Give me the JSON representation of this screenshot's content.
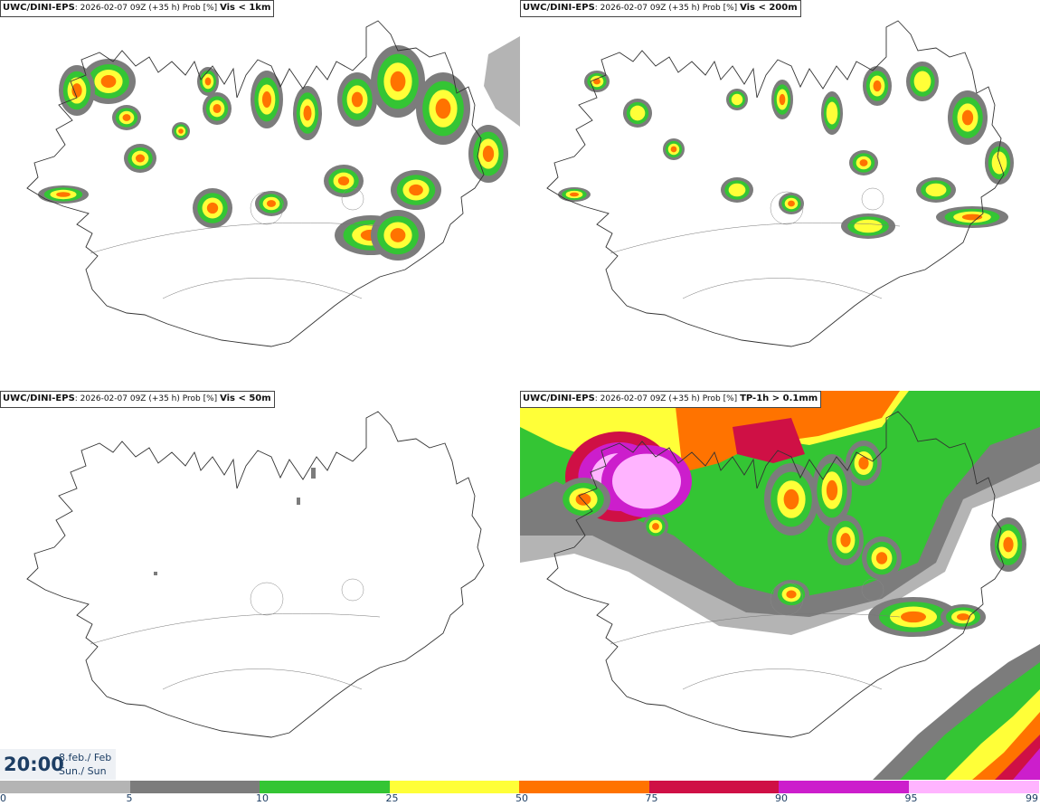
{
  "panels": [
    {
      "model": "UWC/DINI-EPS",
      "info": "2026-02-07 09Z (+35 h) Prob [%]",
      "threshold": "Vis < 1km"
    },
    {
      "model": "UWC/DINI-EPS",
      "info": "2026-02-07 09Z (+35 h) Prob [%]",
      "threshold": "Vis < 200m"
    },
    {
      "model": "UWC/DINI-EPS",
      "info": "2026-02-07 09Z (+35 h) Prob [%]",
      "threshold": "Vis < 50m"
    },
    {
      "model": "UWC/DINI-EPS",
      "info": "2026-02-07 09Z (+35 h) Prob [%]",
      "threshold": "TP-1h > 0.1mm"
    }
  ],
  "clock": {
    "time": "20:00",
    "date_line1": "8.feb./ Feb",
    "date_line2": "Sun./ Sun"
  },
  "scale": {
    "ticks": [
      "0",
      "5",
      "10",
      "25",
      "50",
      "75",
      "90",
      "95",
      "99"
    ],
    "colors": [
      "#ffffff",
      "#b4b4b4",
      "#7c7c7c",
      "#34c534",
      "#ffff38",
      "#ff7300",
      "#cf1045",
      "#cc1ecc",
      "#ffb4ff"
    ]
  }
}
